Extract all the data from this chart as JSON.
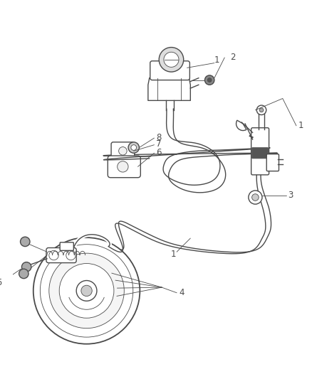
{
  "background_color": "#ffffff",
  "line_color": "#4a4a4a",
  "lw": 1.0,
  "tlw": 0.6,
  "figsize": [
    4.38,
    5.33
  ],
  "dpi": 100,
  "label_fs": 8.5
}
